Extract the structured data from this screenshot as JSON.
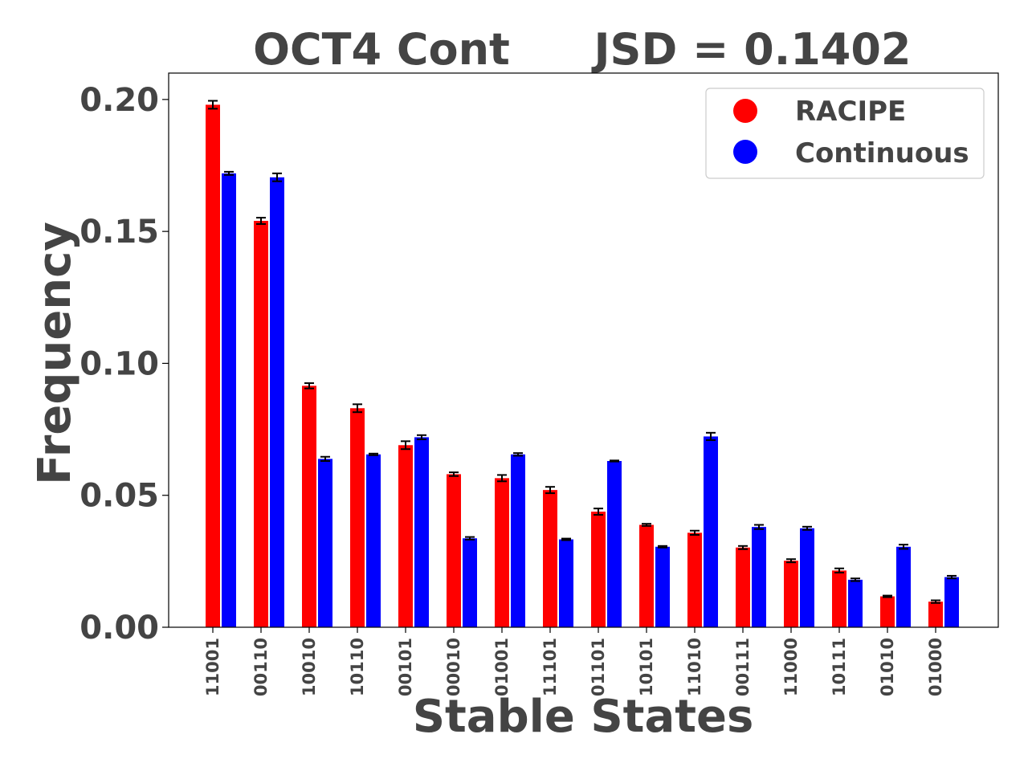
{
  "chart_data": {
    "type": "bar",
    "title": "OCT4 Cont",
    "subtitle": "JSD = 0.1402",
    "xlabel": "Stable States",
    "ylabel": "Frequency",
    "ylim": [
      0,
      0.21
    ],
    "yticks": [
      "0.00",
      "0.05",
      "0.10",
      "0.15",
      "0.20"
    ],
    "grid": false,
    "legend_position": "top-right",
    "categories": [
      "11001",
      "00110",
      "10010",
      "10110",
      "00101",
      "00010",
      "01001",
      "11101",
      "01101",
      "10101",
      "11010",
      "00111",
      "11000",
      "10111",
      "01010",
      "01000"
    ],
    "series": [
      {
        "name": "RACIPE",
        "color": "#ff0000",
        "values": [
          0.198,
          0.154,
          0.0915,
          0.083,
          0.069,
          0.058,
          0.0565,
          0.052,
          0.0438,
          0.0388,
          0.0358,
          0.0302,
          0.0252,
          0.0215,
          0.0117,
          0.0097
        ],
        "errors": [
          0.0015,
          0.0012,
          0.001,
          0.0015,
          0.0015,
          0.0007,
          0.0012,
          0.0012,
          0.0012,
          0.0004,
          0.0008,
          0.0006,
          0.0006,
          0.0008,
          0.0003,
          0.0005
        ]
      },
      {
        "name": "Continuous",
        "color": "#0000ff",
        "values": [
          0.172,
          0.1705,
          0.0638,
          0.0655,
          0.072,
          0.0337,
          0.0655,
          0.0333,
          0.063,
          0.0305,
          0.0723,
          0.038,
          0.0375,
          0.018,
          0.0305,
          0.019
        ],
        "errors": [
          0.0006,
          0.0015,
          0.0008,
          0.0003,
          0.0008,
          0.0005,
          0.0005,
          0.0003,
          0.0002,
          0.0003,
          0.0014,
          0.0008,
          0.0006,
          0.0005,
          0.0008,
          0.0005
        ]
      }
    ]
  }
}
